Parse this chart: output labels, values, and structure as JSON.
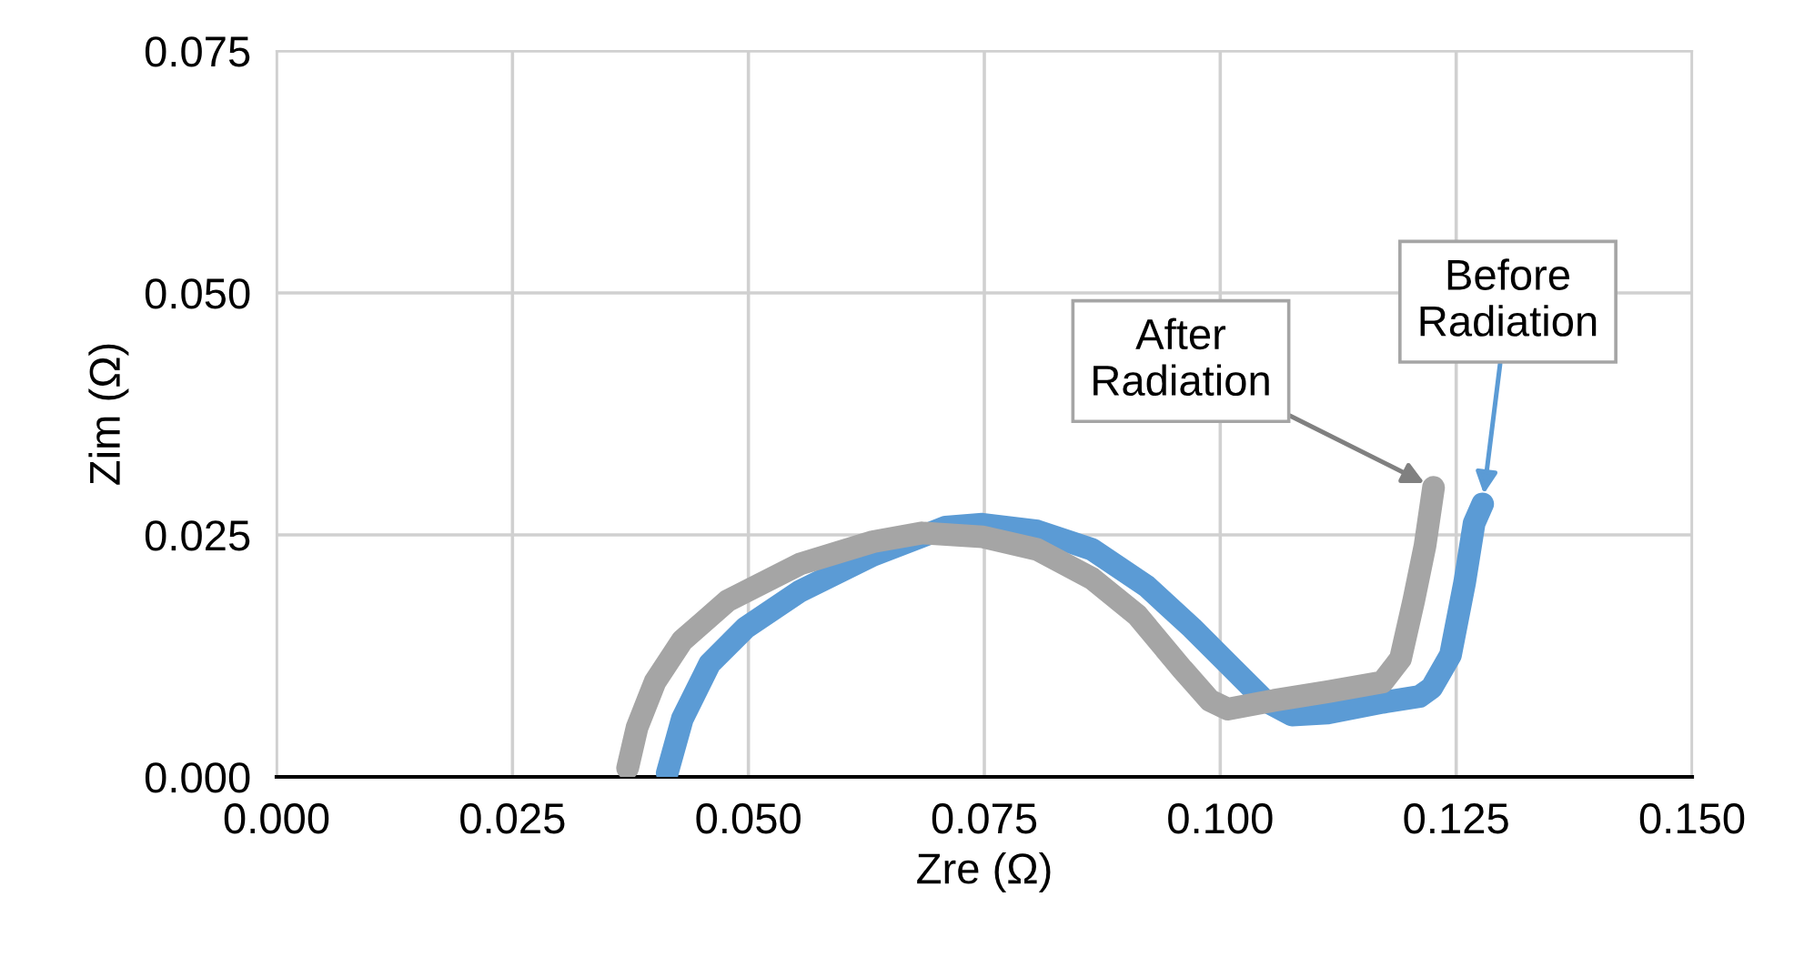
{
  "chart_data": {
    "type": "line",
    "xlabel": "Zre (Ω)",
    "ylabel": "Zim (Ω)",
    "xlim": [
      0,
      0.15
    ],
    "ylim": [
      0,
      0.075
    ],
    "xticks": [
      {
        "value": 0,
        "label": "0.000"
      },
      {
        "value": 0.025,
        "label": "0.025"
      },
      {
        "value": 0.05,
        "label": "0.050"
      },
      {
        "value": 0.075,
        "label": "0.075"
      },
      {
        "value": 0.1,
        "label": "0.100"
      },
      {
        "value": 0.125,
        "label": "0.125"
      },
      {
        "value": 0.15,
        "label": "0.150"
      }
    ],
    "yticks": [
      {
        "value": 0,
        "label": "0.000"
      },
      {
        "value": 0.025,
        "label": "0.025"
      },
      {
        "value": 0.05,
        "label": "0.050"
      },
      {
        "value": 0.075,
        "label": "0.075"
      }
    ],
    "grid": true,
    "line_style": "solid",
    "series": [
      {
        "color": "#5b9bd5",
        "x": [
          0.0414,
          0.043,
          0.0459,
          0.0497,
          0.0555,
          0.0632,
          0.0709,
          0.0748,
          0.0806,
          0.0864,
          0.0922,
          0.097,
          0.1008,
          0.1047,
          0.1076,
          0.1114,
          0.1172,
          0.1211,
          0.1224,
          0.1244,
          0.1259,
          0.1269,
          0.1278
        ],
        "values": [
          0.0004,
          0.006,
          0.0117,
          0.0154,
          0.0192,
          0.0229,
          0.0258,
          0.0261,
          0.0254,
          0.0235,
          0.0197,
          0.0154,
          0.0117,
          0.0079,
          0.0064,
          0.0066,
          0.0077,
          0.0083,
          0.0092,
          0.0126,
          0.0201,
          0.0262,
          0.0282
        ]
      },
      {
        "color": "#a5a5a5",
        "x": [
          0.0372,
          0.0382,
          0.0401,
          0.043,
          0.0478,
          0.0555,
          0.0632,
          0.0684,
          0.0748,
          0.0806,
          0.0864,
          0.0912,
          0.096,
          0.0989,
          0.1008,
          0.1057,
          0.1114,
          0.1172,
          0.1191,
          0.1205,
          0.1217,
          0.1226
        ],
        "values": [
          0.0009,
          0.0051,
          0.0098,
          0.0141,
          0.0182,
          0.022,
          0.0243,
          0.0252,
          0.0248,
          0.0235,
          0.0205,
          0.0167,
          0.0111,
          0.0079,
          0.007,
          0.0079,
          0.0088,
          0.0098,
          0.0122,
          0.0182,
          0.0239,
          0.0299
        ]
      }
    ],
    "annotations": [
      {
        "text": "Before\nRadiation",
        "x": 0.1278,
        "y": 0.0282
      },
      {
        "text": "After\nRadiation",
        "x": 0.1226,
        "y": 0.0299
      }
    ]
  }
}
